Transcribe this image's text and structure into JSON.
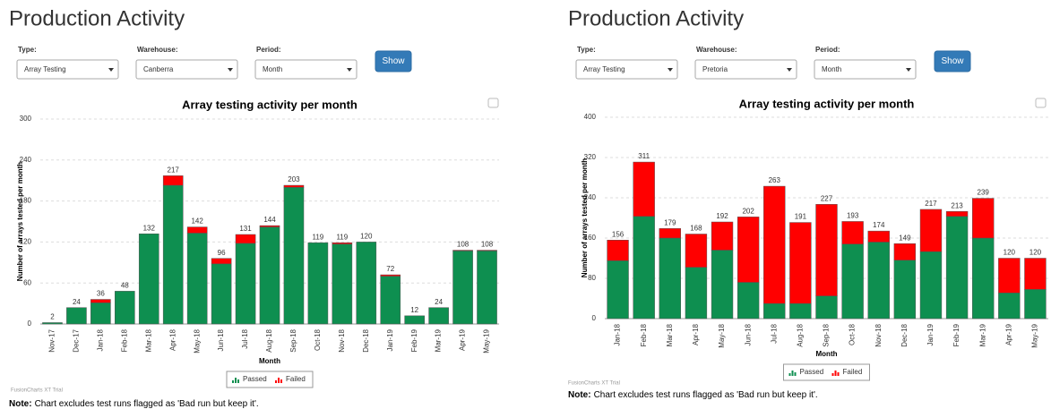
{
  "panels": [
    {
      "title": "Production Activity",
      "fields": [
        {
          "label": "Type:",
          "value": "Array Testing"
        },
        {
          "label": "Warehouse:",
          "value": "Canberra"
        },
        {
          "label": "Period:",
          "value": "Month"
        }
      ],
      "button": "Show",
      "trial": "FusionCharts XT Trial",
      "note_label": "Note:",
      "note": "Chart excludes test runs flagged as 'Bad run but keep it'."
    },
    {
      "title": "Production Activity",
      "fields": [
        {
          "label": "Type:",
          "value": "Array Testing"
        },
        {
          "label": "Warehouse:",
          "value": "Pretoria"
        },
        {
          "label": "Period:",
          "value": "Month"
        }
      ],
      "button": "Show",
      "trial": "FusionCharts XT Trial",
      "note_label": "Note:",
      "note": "Chart excludes test runs flagged as 'Bad run but keep it'."
    }
  ],
  "chart_data": [
    {
      "type": "bar",
      "stacked": true,
      "title": "Array testing activity per month",
      "x_label": "Month",
      "y_label": "Number of arrays tested per month",
      "categories": [
        "Nov-17",
        "Dec-17",
        "Jan-18",
        "Feb-18",
        "Mar-18",
        "Apr-18",
        "May-18",
        "Jun-18",
        "Jul-18",
        "Aug-18",
        "Sep-18",
        "Oct-18",
        "Nov-18",
        "Dec-18",
        "Jan-19",
        "Feb-19",
        "Mar-19",
        "Apr-19",
        "May-19"
      ],
      "series": [
        {
          "name": "Passed",
          "color": "#0e8f50",
          "values": [
            2,
            24,
            31,
            48,
            132,
            203,
            133,
            88,
            118,
            142,
            200,
            119,
            117,
            120,
            70,
            12,
            24,
            107,
            107
          ]
        },
        {
          "name": "Failed",
          "color": "#ff0000",
          "values": [
            0,
            0,
            5,
            0,
            0,
            14,
            9,
            8,
            13,
            2,
            3,
            0,
            2,
            0,
            2,
            0,
            0,
            1,
            1
          ]
        }
      ],
      "totals": [
        2,
        24,
        36,
        48,
        132,
        217,
        142,
        96,
        131,
        144,
        203,
        119,
        119,
        120,
        72,
        12,
        24,
        108,
        108
      ],
      "ylim": [
        0,
        300
      ],
      "yticks": [
        0,
        60,
        120,
        180,
        240,
        300
      ],
      "grid": true
    },
    {
      "type": "bar",
      "stacked": true,
      "title": "Array testing activity per month",
      "x_label": "Month",
      "y_label": "Number of arrays tested per month",
      "categories": [
        "Jan-18",
        "Feb-18",
        "Mar-18",
        "Apr-18",
        "May-18",
        "Jun-18",
        "Jul-18",
        "Aug-18",
        "Sep-18",
        "Oct-18",
        "Nov-18",
        "Dec-18",
        "Jan-19",
        "Feb-19",
        "Mar-19",
        "Apr-19",
        "May-19"
      ],
      "series": [
        {
          "name": "Passed",
          "color": "#0e8f50",
          "values": [
            115,
            203,
            160,
            102,
            136,
            72,
            30,
            30,
            45,
            148,
            152,
            116,
            133,
            203,
            160,
            51,
            58
          ]
        },
        {
          "name": "Failed",
          "color": "#ff0000",
          "values": [
            41,
            108,
            19,
            66,
            56,
            130,
            233,
            161,
            182,
            45,
            22,
            33,
            84,
            10,
            79,
            69,
            62
          ]
        }
      ],
      "totals": [
        156,
        311,
        179,
        168,
        192,
        202,
        263,
        191,
        227,
        193,
        174,
        149,
        217,
        213,
        239,
        120,
        120
      ],
      "ylim": [
        0,
        400
      ],
      "yticks": [
        0,
        80,
        160,
        240,
        320,
        400
      ],
      "grid": true
    }
  ]
}
